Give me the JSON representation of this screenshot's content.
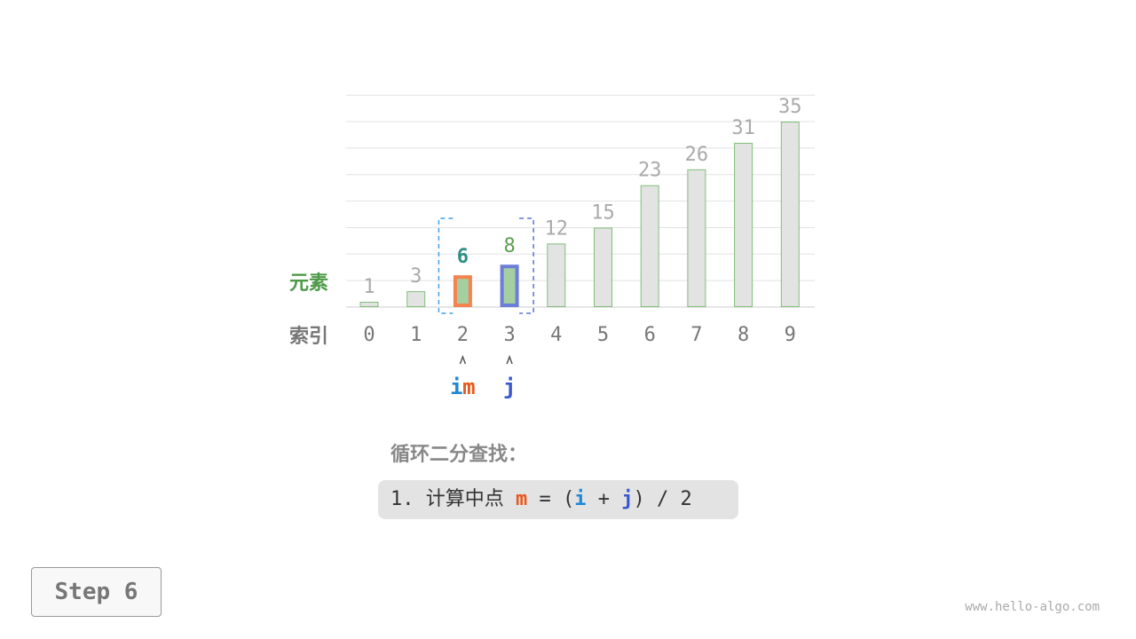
{
  "labels": {
    "element": "元素",
    "index": "索引"
  },
  "array": [
    1,
    3,
    6,
    8,
    12,
    15,
    23,
    26,
    31,
    35
  ],
  "indices": [
    "0",
    "1",
    "2",
    "3",
    "4",
    "5",
    "6",
    "7",
    "8",
    "9"
  ],
  "pointers": {
    "i": {
      "label": "i",
      "index": 2,
      "color": "#1f88d6"
    },
    "m": {
      "label": "m",
      "index": 2,
      "color": "#e8581c"
    },
    "j": {
      "label": "j",
      "index": 3,
      "color": "#3a57d0"
    }
  },
  "search_range": [
    2,
    3
  ],
  "highlight": {
    "m_border": "#f5834f",
    "j_border": "#6c7ed8",
    "fill_active": "#a5cfa0",
    "fill_default": "#e3e3e3",
    "m_value_color": "#2f8f85",
    "j_value_color": "#5a9e4c"
  },
  "title": "循环二分查找：",
  "formula": {
    "prefix": "1. 计算中点 ",
    "m": "m",
    "eq": " = (",
    "i": "i",
    "plus": " + ",
    "j": "j",
    "suffix": ") / 2"
  },
  "step_label": "Step 6",
  "watermark": "www.hello-algo.com"
}
